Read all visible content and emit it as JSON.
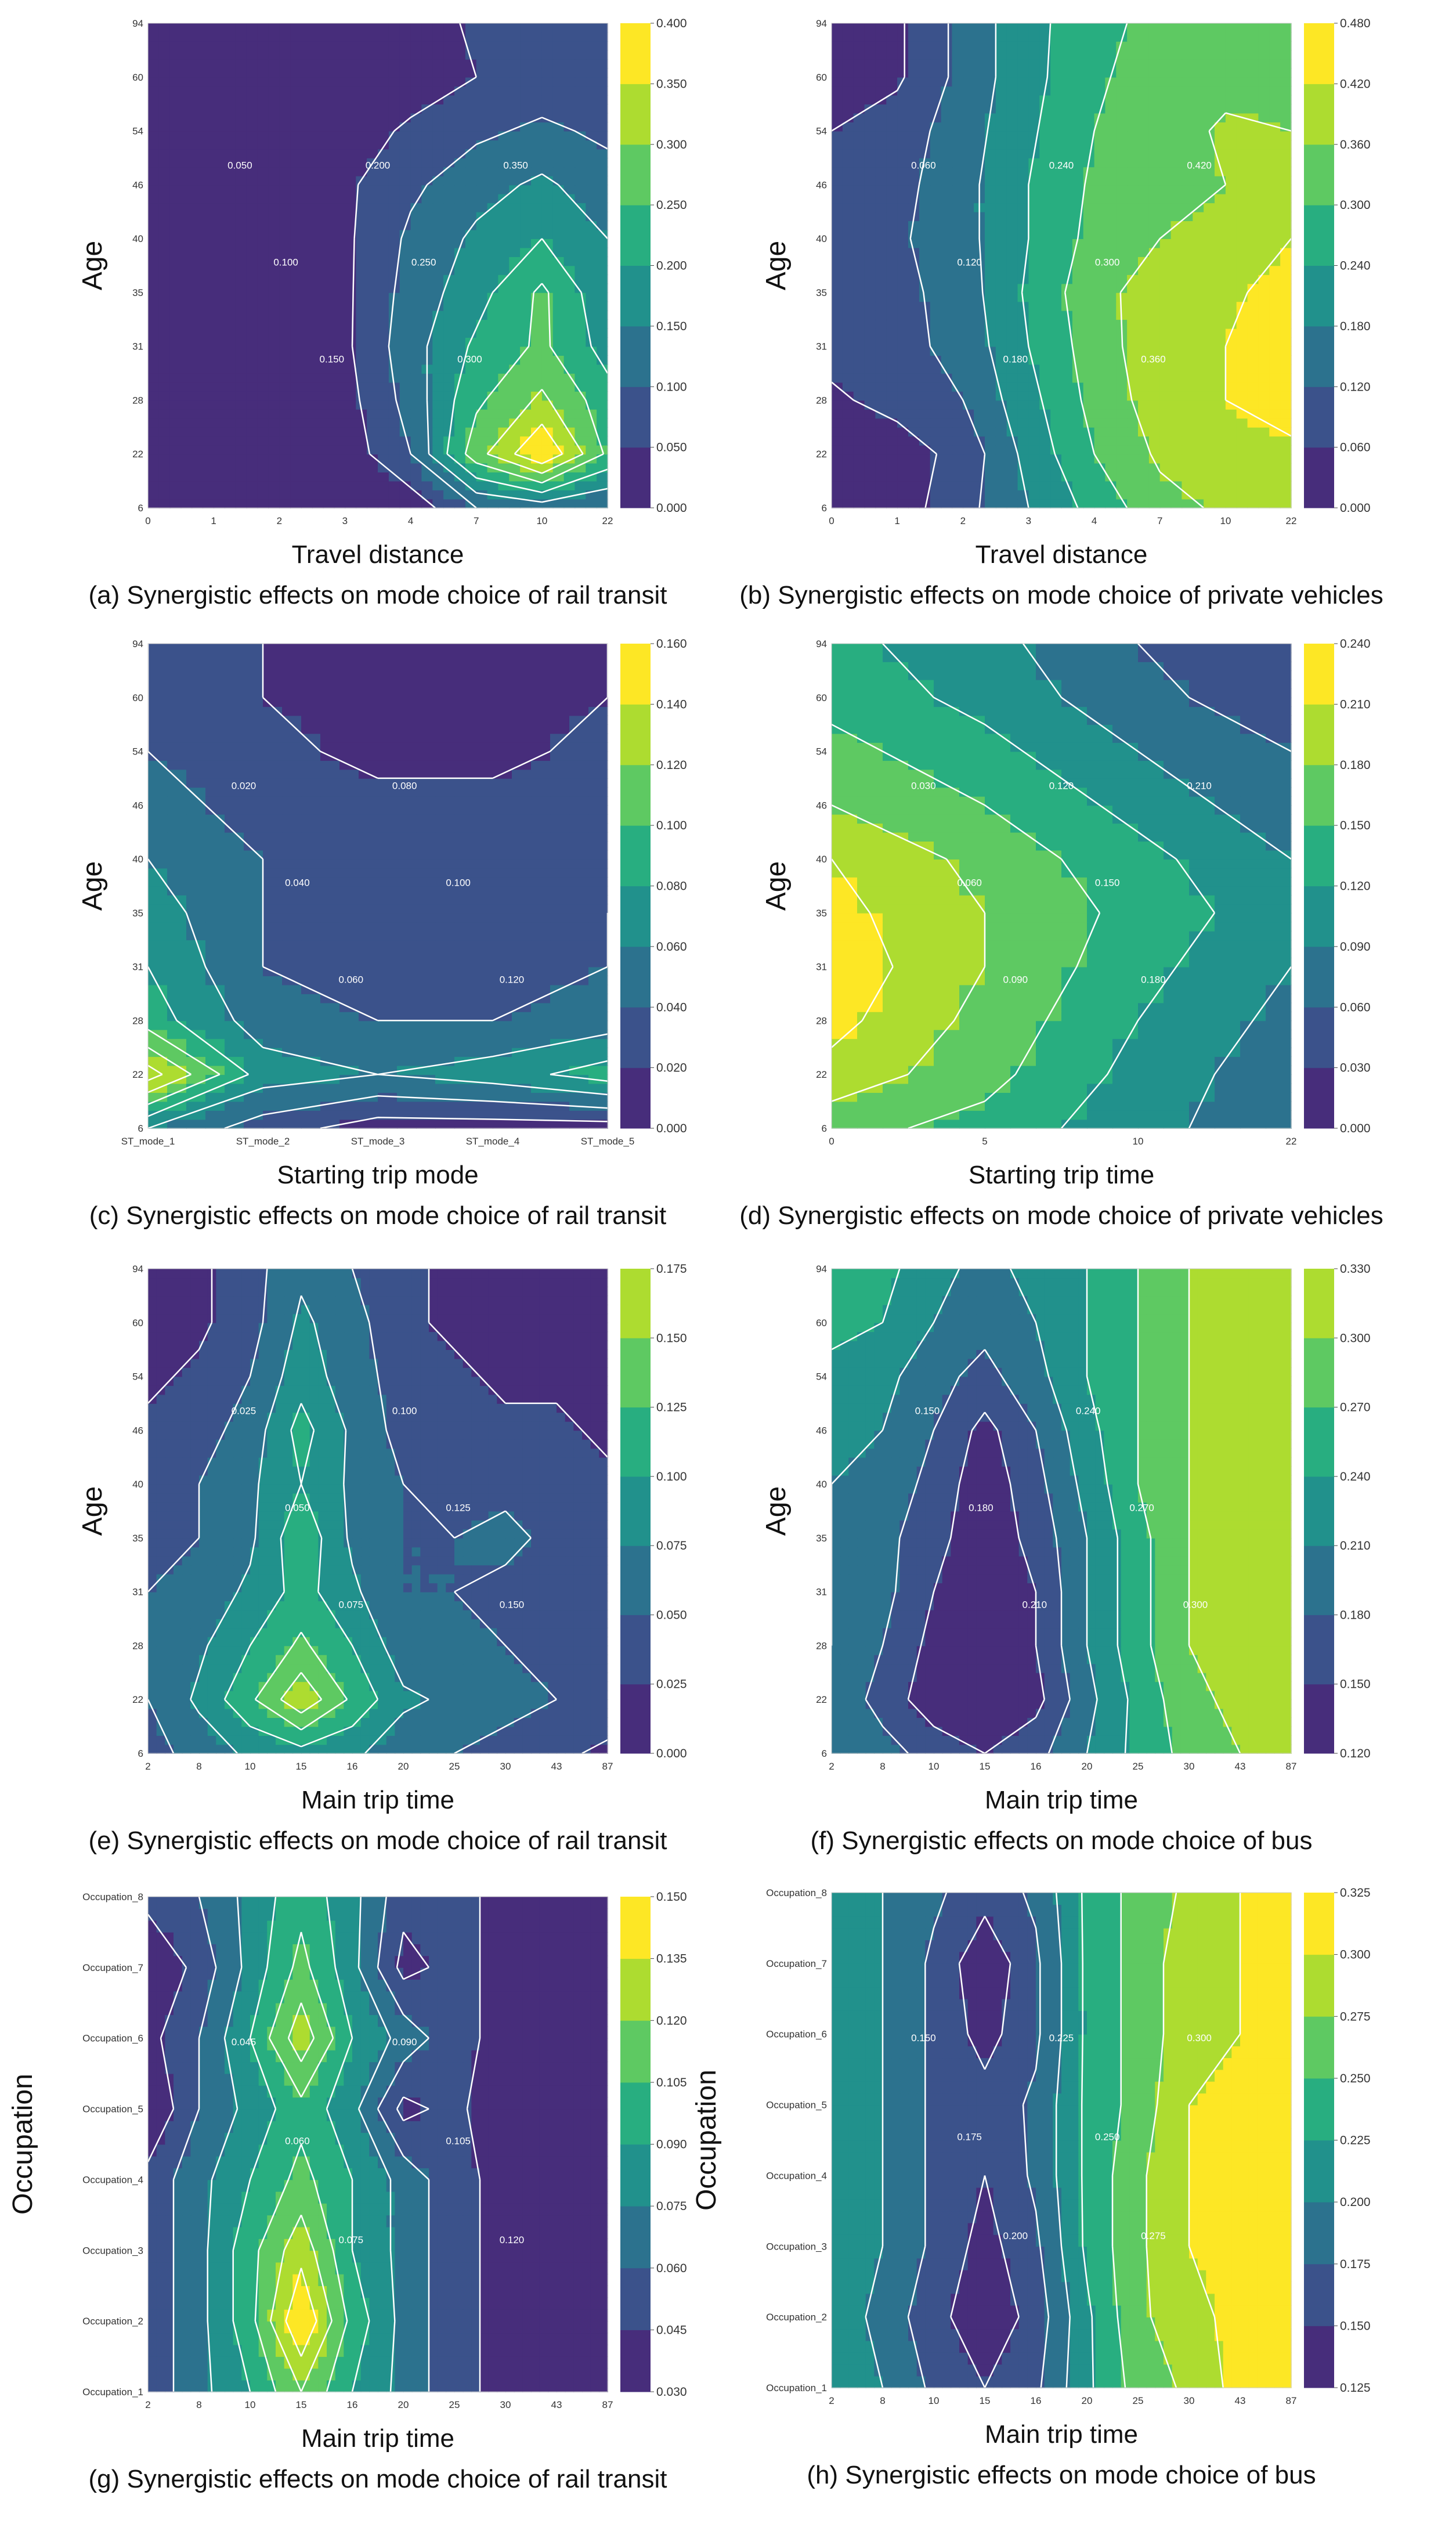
{
  "figure": {
    "palette": [
      "#472d7b",
      "#3b528b",
      "#2c728e",
      "#21918c",
      "#28ae80",
      "#5ec962",
      "#addc30",
      "#fde725"
    ],
    "axis_label_color": "#111111"
  },
  "chart_data": [
    {
      "id": "a",
      "type": "contour",
      "caption": "(a) Synergistic effects on mode choice of rail transit",
      "xlabel": "Travel distance",
      "ylabel": "Age",
      "xticks": [
        "0",
        "1",
        "2",
        "3",
        "4",
        "7",
        "10",
        "22"
      ],
      "yticks": [
        "6",
        "22",
        "28",
        "31",
        "35",
        "40",
        "46",
        "54",
        "60",
        "94"
      ],
      "colorbar": [
        "0.000",
        "0.050",
        "0.100",
        "0.150",
        "0.200",
        "0.250",
        "0.300",
        "0.350",
        "0.400"
      ],
      "contour_labels": [
        "0.050",
        "0.100",
        "0.150",
        "0.200",
        "0.250",
        "0.300",
        "0.350"
      ],
      "z": [
        [
          0.0,
          0.0,
          0.0,
          0.0,
          0.02,
          0.1,
          0.12,
          0.1
        ],
        [
          0.0,
          0.0,
          0.0,
          0.02,
          0.1,
          0.28,
          0.4,
          0.24
        ],
        [
          0.0,
          0.0,
          0.0,
          0.03,
          0.12,
          0.24,
          0.31,
          0.22
        ],
        [
          0.0,
          0.0,
          0.0,
          0.04,
          0.13,
          0.21,
          0.26,
          0.18
        ],
        [
          0.0,
          0.0,
          0.0,
          0.04,
          0.12,
          0.18,
          0.26,
          0.16
        ],
        [
          0.0,
          0.0,
          0.0,
          0.04,
          0.11,
          0.16,
          0.2,
          0.15
        ],
        [
          0.0,
          0.0,
          0.0,
          0.04,
          0.09,
          0.13,
          0.16,
          0.12
        ],
        [
          0.0,
          0.0,
          0.0,
          0.02,
          0.06,
          0.09,
          0.11,
          0.09
        ],
        [
          0.0,
          0.0,
          0.0,
          0.0,
          0.02,
          0.05,
          0.07,
          0.07
        ],
        [
          0.0,
          0.0,
          0.0,
          0.0,
          0.02,
          0.06,
          0.07,
          0.06
        ]
      ]
    },
    {
      "id": "b",
      "type": "contour",
      "caption": "(b) Synergistic effects on mode choice of private vehicles",
      "xlabel": "Travel distance",
      "ylabel": "Age",
      "xticks": [
        "0",
        "1",
        "2",
        "3",
        "4",
        "7",
        "10",
        "22"
      ],
      "yticks": [
        "6",
        "22",
        "28",
        "31",
        "35",
        "40",
        "46",
        "54",
        "60",
        "94"
      ],
      "colorbar": [
        "0.000",
        "0.060",
        "0.120",
        "0.180",
        "0.240",
        "0.300",
        "0.360",
        "0.420",
        "0.480"
      ],
      "contour_labels": [
        "0.060",
        "0.120",
        "0.180",
        "0.240",
        "0.300",
        "0.360",
        "0.420"
      ],
      "z": [
        [
          0.03,
          0.03,
          0.1,
          0.18,
          0.26,
          0.34,
          0.37,
          0.38
        ],
        [
          0.03,
          0.03,
          0.08,
          0.2,
          0.3,
          0.37,
          0.4,
          0.4
        ],
        [
          0.05,
          0.08,
          0.12,
          0.22,
          0.32,
          0.39,
          0.42,
          0.46
        ],
        [
          0.08,
          0.1,
          0.14,
          0.24,
          0.33,
          0.4,
          0.42,
          0.46
        ],
        [
          0.08,
          0.1,
          0.15,
          0.25,
          0.34,
          0.39,
          0.41,
          0.44
        ],
        [
          0.08,
          0.11,
          0.16,
          0.24,
          0.32,
          0.36,
          0.38,
          0.42
        ],
        [
          0.08,
          0.1,
          0.16,
          0.24,
          0.31,
          0.34,
          0.36,
          0.38
        ],
        [
          0.06,
          0.09,
          0.15,
          0.23,
          0.3,
          0.33,
          0.37,
          0.36
        ],
        [
          0.02,
          0.05,
          0.14,
          0.22,
          0.29,
          0.33,
          0.34,
          0.35
        ],
        [
          0.02,
          0.05,
          0.14,
          0.22,
          0.28,
          0.32,
          0.33,
          0.34
        ]
      ]
    },
    {
      "id": "c",
      "type": "contour",
      "caption": "(c) Synergistic effects on mode choice of rail transit",
      "xlabel": "Starting trip mode",
      "ylabel": "Age",
      "xticks": [
        "ST_mode_1",
        "ST_mode_2",
        "ST_mode_3",
        "ST_mode_4",
        "ST_mode_5"
      ],
      "yticks": [
        "6",
        "22",
        "28",
        "31",
        "35",
        "40",
        "46",
        "54",
        "60",
        "94"
      ],
      "colorbar": [
        "0.000",
        "0.020",
        "0.040",
        "0.060",
        "0.080",
        "0.100",
        "0.120",
        "0.140",
        "0.160"
      ],
      "contour_labels": [
        "0.020",
        "0.040",
        "0.060",
        "0.080",
        "0.100",
        "0.120"
      ],
      "z": [
        [
          0.06,
          0.03,
          0.01,
          0.01,
          0.01
        ],
        [
          0.15,
          0.07,
          0.06,
          0.07,
          0.09
        ],
        [
          0.09,
          0.05,
          0.04,
          0.04,
          0.05
        ],
        [
          0.08,
          0.04,
          0.03,
          0.03,
          0.04
        ],
        [
          0.07,
          0.04,
          0.03,
          0.03,
          0.04
        ],
        [
          0.06,
          0.04,
          0.03,
          0.03,
          0.03
        ],
        [
          0.05,
          0.03,
          0.03,
          0.03,
          0.03
        ],
        [
          0.04,
          0.03,
          0.01,
          0.01,
          0.03
        ],
        [
          0.04,
          0.02,
          0.01,
          0.01,
          0.02
        ],
        [
          0.04,
          0.02,
          0.01,
          0.01,
          0.02
        ]
      ]
    },
    {
      "id": "d",
      "type": "contour",
      "caption": "(d) Synergistic effects on mode choice of private vehicles",
      "xlabel": "Starting trip time",
      "ylabel": "Age",
      "xticks": [
        "0",
        "5",
        "10",
        "22"
      ],
      "yticks": [
        "6",
        "22",
        "28",
        "31",
        "35",
        "40",
        "46",
        "54",
        "60",
        "94"
      ],
      "colorbar": [
        "0.000",
        "0.030",
        "0.060",
        "0.090",
        "0.120",
        "0.150",
        "0.180",
        "0.210",
        "0.240"
      ],
      "contour_labels": [
        "0.030",
        "0.060",
        "0.090",
        "0.120",
        "0.150",
        "0.180",
        "0.210"
      ],
      "z": [
        [
          0.16,
          0.14,
          0.1,
          0.07,
          0.04
        ],
        [
          0.2,
          0.16,
          0.11,
          0.07,
          0.04
        ],
        [
          0.22,
          0.17,
          0.12,
          0.08,
          0.05
        ],
        [
          0.23,
          0.18,
          0.13,
          0.09,
          0.06
        ],
        [
          0.22,
          0.18,
          0.14,
          0.1,
          0.06
        ],
        [
          0.21,
          0.17,
          0.13,
          0.09,
          0.06
        ],
        [
          0.18,
          0.15,
          0.11,
          0.07,
          0.05
        ],
        [
          0.16,
          0.13,
          0.09,
          0.06,
          0.04
        ],
        [
          0.14,
          0.11,
          0.07,
          0.04,
          0.02
        ],
        [
          0.13,
          0.1,
          0.06,
          0.03,
          0.01
        ]
      ]
    },
    {
      "id": "e",
      "type": "contour",
      "caption": "(e) Synergistic effects on mode choice of rail transit",
      "xlabel": "Main trip time",
      "ylabel": "Age",
      "xticks": [
        "2",
        "8",
        "10",
        "15",
        "16",
        "20",
        "25",
        "30",
        "43",
        "87"
      ],
      "yticks": [
        "6",
        "22",
        "28",
        "31",
        "35",
        "40",
        "46",
        "54",
        "60",
        "94"
      ],
      "colorbar": [
        "0.000",
        "0.025",
        "0.050",
        "0.075",
        "0.100",
        "0.125",
        "0.150",
        "0.175"
      ],
      "contour_labels": [
        "0.025",
        "0.050",
        "0.075",
        "0.100",
        "0.125",
        "0.150"
      ],
      "z": [
        [
          0.04,
          0.06,
          0.08,
          0.09,
          0.08,
          0.06,
          0.05,
          0.04,
          0.03,
          0.02
        ],
        [
          0.05,
          0.08,
          0.12,
          0.17,
          0.12,
          0.08,
          0.07,
          0.06,
          0.05,
          0.04
        ],
        [
          0.05,
          0.07,
          0.1,
          0.13,
          0.1,
          0.06,
          0.06,
          0.05,
          0.04,
          0.04
        ],
        [
          0.05,
          0.06,
          0.08,
          0.11,
          0.08,
          0.05,
          0.05,
          0.04,
          0.04,
          0.03
        ],
        [
          0.04,
          0.05,
          0.07,
          0.12,
          0.07,
          0.05,
          0.05,
          0.06,
          0.04,
          0.03
        ],
        [
          0.04,
          0.05,
          0.07,
          0.1,
          0.07,
          0.05,
          0.04,
          0.04,
          0.04,
          0.03
        ],
        [
          0.03,
          0.04,
          0.06,
          0.11,
          0.07,
          0.04,
          0.04,
          0.03,
          0.03,
          0.02
        ],
        [
          0.02,
          0.03,
          0.05,
          0.09,
          0.06,
          0.04,
          0.03,
          0.02,
          0.02,
          0.01
        ],
        [
          0.01,
          0.02,
          0.04,
          0.08,
          0.06,
          0.03,
          0.02,
          0.01,
          0.01,
          0.01
        ],
        [
          0.01,
          0.02,
          0.04,
          0.07,
          0.05,
          0.03,
          0.02,
          0.01,
          0.01,
          0.01
        ]
      ]
    },
    {
      "id": "f",
      "type": "contour",
      "caption": "(f) Synergistic effects on mode choice of bus",
      "xlabel": "Main trip time",
      "ylabel": "Age",
      "xticks": [
        "2",
        "8",
        "10",
        "15",
        "16",
        "20",
        "25",
        "30",
        "43",
        "87"
      ],
      "yticks": [
        "6",
        "22",
        "28",
        "31",
        "35",
        "40",
        "46",
        "54",
        "60",
        "94"
      ],
      "colorbar": [
        "0.120",
        "0.150",
        "0.180",
        "0.210",
        "0.240",
        "0.270",
        "0.300",
        "0.330"
      ],
      "contour_labels": [
        "0.150",
        "0.180",
        "0.210",
        "0.240",
        "0.270",
        "0.300"
      ],
      "z": [
        [
          0.2,
          0.19,
          0.17,
          0.15,
          0.17,
          0.21,
          0.25,
          0.28,
          0.3,
          0.3
        ],
        [
          0.2,
          0.17,
          0.13,
          0.12,
          0.14,
          0.2,
          0.25,
          0.29,
          0.31,
          0.31
        ],
        [
          0.21,
          0.18,
          0.14,
          0.12,
          0.15,
          0.21,
          0.26,
          0.3,
          0.32,
          0.32
        ],
        [
          0.21,
          0.19,
          0.15,
          0.13,
          0.15,
          0.21,
          0.26,
          0.3,
          0.32,
          0.32
        ],
        [
          0.21,
          0.19,
          0.16,
          0.13,
          0.16,
          0.21,
          0.26,
          0.3,
          0.32,
          0.32
        ],
        [
          0.21,
          0.2,
          0.17,
          0.13,
          0.17,
          0.22,
          0.27,
          0.3,
          0.32,
          0.32
        ],
        [
          0.22,
          0.21,
          0.18,
          0.14,
          0.18,
          0.23,
          0.27,
          0.3,
          0.32,
          0.32
        ],
        [
          0.23,
          0.22,
          0.19,
          0.17,
          0.2,
          0.24,
          0.27,
          0.3,
          0.32,
          0.32
        ],
        [
          0.25,
          0.24,
          0.21,
          0.19,
          0.21,
          0.24,
          0.27,
          0.3,
          0.32,
          0.32
        ],
        [
          0.27,
          0.25,
          0.22,
          0.2,
          0.22,
          0.24,
          0.27,
          0.3,
          0.32,
          0.32
        ]
      ]
    },
    {
      "id": "g",
      "type": "contour",
      "caption": "(g) Synergistic effects on mode choice of rail transit",
      "xlabel": "Main trip time",
      "ylabel": "Occupation",
      "xticks": [
        "2",
        "8",
        "10",
        "15",
        "16",
        "20",
        "25",
        "30",
        "43",
        "87"
      ],
      "yticks": [
        "Occupation_1",
        "Occupation_2",
        "Occupation_3",
        "Occupation_4",
        "Occupation_5",
        "Occupation_6",
        "Occupation_7",
        "Occupation_8"
      ],
      "colorbar": [
        "0.030",
        "0.045",
        "0.060",
        "0.075",
        "0.090",
        "0.105",
        "0.120",
        "0.135",
        "0.150"
      ],
      "contour_labels": [
        "0.045",
        "0.060",
        "0.075",
        "0.090",
        "0.105",
        "0.120"
      ],
      "z": [
        [
          0.05,
          0.07,
          0.09,
          0.12,
          0.09,
          0.07,
          0.05,
          0.04,
          0.03,
          0.03
        ],
        [
          0.05,
          0.07,
          0.1,
          0.15,
          0.1,
          0.07,
          0.05,
          0.04,
          0.03,
          0.04
        ],
        [
          0.05,
          0.07,
          0.1,
          0.13,
          0.09,
          0.07,
          0.05,
          0.04,
          0.03,
          0.03
        ],
        [
          0.05,
          0.07,
          0.09,
          0.11,
          0.09,
          0.07,
          0.05,
          0.04,
          0.03,
          0.03
        ],
        [
          0.03,
          0.06,
          0.08,
          0.1,
          0.08,
          0.04,
          0.05,
          0.03,
          0.03,
          0.03
        ],
        [
          0.04,
          0.06,
          0.09,
          0.13,
          0.09,
          0.07,
          0.05,
          0.04,
          0.03,
          0.03
        ],
        [
          0.03,
          0.05,
          0.08,
          0.11,
          0.08,
          0.04,
          0.05,
          0.04,
          0.03,
          0.03
        ],
        [
          0.05,
          0.06,
          0.08,
          0.1,
          0.08,
          0.05,
          0.05,
          0.04,
          0.04,
          0.04
        ]
      ]
    },
    {
      "id": "h",
      "type": "contour",
      "caption": "(h) Synergistic effects on mode choice of bus",
      "xlabel": "Main trip time",
      "ylabel": "Occupation",
      "xticks": [
        "2",
        "8",
        "10",
        "15",
        "16",
        "20",
        "25",
        "30",
        "43",
        "87"
      ],
      "yticks": [
        "Occupation_1",
        "Occupation_2",
        "Occupation_3",
        "Occupation_4",
        "Occupation_5",
        "Occupation_6",
        "Occupation_7",
        "Occupation_8"
      ],
      "colorbar": [
        "0.125",
        "0.150",
        "0.175",
        "0.200",
        "0.225",
        "0.250",
        "0.275",
        "0.300",
        "0.325"
      ],
      "contour_labels": [
        "0.150",
        "0.175",
        "0.200",
        "0.225",
        "0.250",
        "0.275",
        "0.300"
      ],
      "z": [
        [
          0.22,
          0.2,
          0.17,
          0.15,
          0.17,
          0.22,
          0.26,
          0.28,
          0.31,
          0.32
        ],
        [
          0.22,
          0.19,
          0.16,
          0.13,
          0.16,
          0.22,
          0.27,
          0.29,
          0.31,
          0.31
        ],
        [
          0.22,
          0.2,
          0.17,
          0.14,
          0.17,
          0.23,
          0.27,
          0.3,
          0.31,
          0.31
        ],
        [
          0.22,
          0.2,
          0.17,
          0.15,
          0.18,
          0.23,
          0.27,
          0.3,
          0.31,
          0.31
        ],
        [
          0.22,
          0.2,
          0.17,
          0.16,
          0.18,
          0.23,
          0.26,
          0.3,
          0.31,
          0.31
        ],
        [
          0.22,
          0.2,
          0.17,
          0.14,
          0.17,
          0.23,
          0.26,
          0.29,
          0.3,
          0.3
        ],
        [
          0.22,
          0.2,
          0.17,
          0.13,
          0.17,
          0.23,
          0.26,
          0.29,
          0.3,
          0.31
        ],
        [
          0.22,
          0.2,
          0.18,
          0.16,
          0.18,
          0.23,
          0.26,
          0.28,
          0.3,
          0.32
        ]
      ]
    }
  ]
}
